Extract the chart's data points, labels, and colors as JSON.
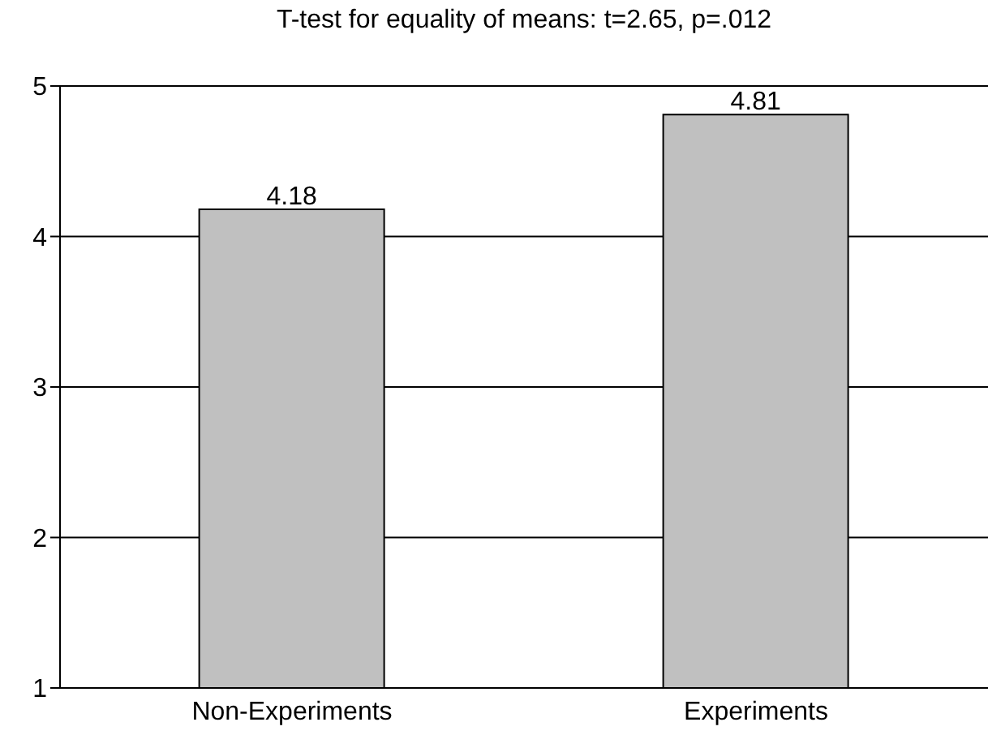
{
  "chart_data": {
    "type": "bar",
    "title": "T-test for equality of means: t=2.65, p=.012",
    "categories": [
      "Non-Experiments",
      "Experiments"
    ],
    "values": [
      4.18,
      4.81
    ],
    "color": "#c0c0c0",
    "ylim": [
      1,
      5
    ],
    "yticks": [
      1,
      2,
      3,
      4,
      5
    ],
    "grid": "y",
    "data_labels": true
  }
}
